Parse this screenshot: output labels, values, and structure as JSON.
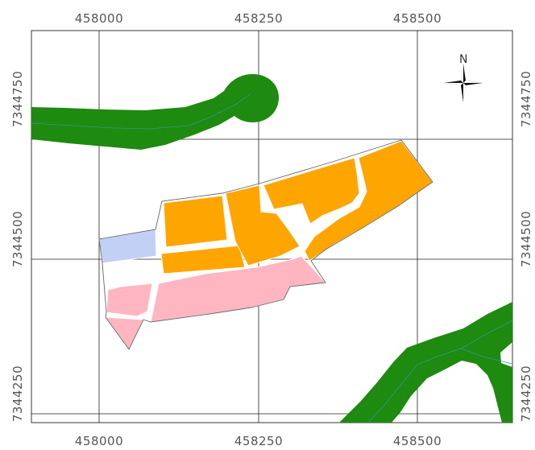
{
  "map": {
    "x_tick_labels_top": [
      "458000",
      "458250",
      "458500"
    ],
    "x_tick_labels_bottom": [
      "458000",
      "458250",
      "458500"
    ],
    "y_tick_labels_left": [
      "7344750",
      "7344500",
      "7344250"
    ],
    "y_tick_labels_right": [
      "7344750",
      "7344500",
      "7344250"
    ],
    "north_arrow_label": "N"
  },
  "colors": {
    "road": "#1e8a10",
    "road_centerline": "#2f9c8f",
    "parcel_orange": "#ffa500",
    "parcel_pink": "#ffb6c1",
    "parcel_blue": "#c2d0f5",
    "grid": "#222222",
    "label": "#555555"
  },
  "legend_icons": {
    "north_arrow": "compass-rose-icon"
  }
}
